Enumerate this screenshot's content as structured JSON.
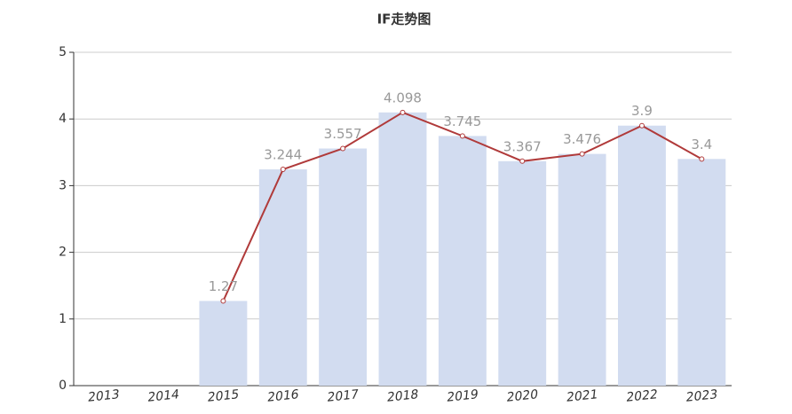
{
  "chart_data": {
    "type": "bar",
    "title": "IF走势图",
    "categories": [
      "2013",
      "2014",
      "2015",
      "2016",
      "2017",
      "2018",
      "2019",
      "2020",
      "2021",
      "2022",
      "2023"
    ],
    "values": [
      null,
      null,
      1.27,
      3.244,
      3.557,
      4.098,
      3.745,
      3.367,
      3.476,
      3.9,
      3.4
    ],
    "color": "#d2dcf0",
    "line_color": "#b03a3a",
    "ylim": [
      0,
      5
    ],
    "yticks": [
      0,
      1,
      2,
      3,
      4,
      5
    ],
    "grid": true
  }
}
